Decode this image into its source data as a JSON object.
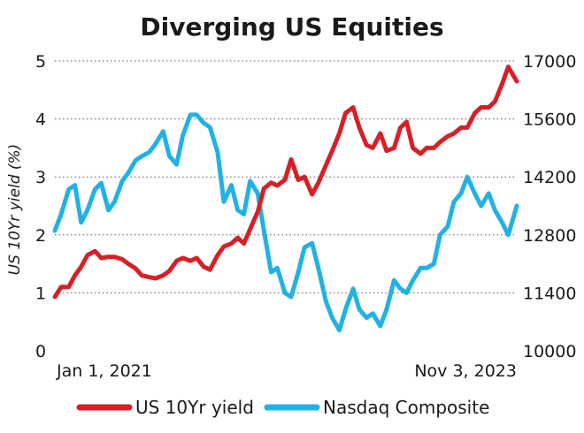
{
  "chart_data": {
    "type": "line",
    "title": "Diverging US Equities",
    "ylabel_left": "US 10Yr yield (%)",
    "ylabel_right": "",
    "x_start_label": "Jan 1, 2021",
    "x_end_label": "Nov 3, 2023",
    "y_left_ticks": [
      "0",
      "1",
      "2",
      "3",
      "4",
      "5"
    ],
    "y_right_ticks": [
      "10000",
      "11400",
      "12800",
      "14200",
      "15600",
      "17000"
    ],
    "ylim_left": [
      0,
      5
    ],
    "ylim_right": [
      10000,
      17000
    ],
    "grid": true,
    "legend_position": "bottom",
    "series": [
      {
        "name": "US 10Yr yield",
        "axis": "left",
        "color": "#d71f27",
        "x": [
          "2021-01-01",
          "2021-01-15",
          "2021-02-01",
          "2021-02-15",
          "2021-03-01",
          "2021-03-15",
          "2021-04-01",
          "2021-04-15",
          "2021-05-01",
          "2021-05-15",
          "2021-06-01",
          "2021-06-15",
          "2021-07-01",
          "2021-07-15",
          "2021-08-01",
          "2021-08-15",
          "2021-09-01",
          "2021-09-15",
          "2021-10-01",
          "2021-10-15",
          "2021-11-01",
          "2021-11-15",
          "2021-12-01",
          "2021-12-15",
          "2022-01-01",
          "2022-01-15",
          "2022-02-01",
          "2022-02-15",
          "2022-03-01",
          "2022-03-15",
          "2022-04-01",
          "2022-04-15",
          "2022-05-01",
          "2022-05-15",
          "2022-06-01",
          "2022-06-15",
          "2022-07-01",
          "2022-07-15",
          "2022-08-01",
          "2022-08-15",
          "2022-09-01",
          "2022-09-15",
          "2022-10-01",
          "2022-10-15",
          "2022-11-01",
          "2022-11-15",
          "2022-12-01",
          "2022-12-15",
          "2023-01-01",
          "2023-01-15",
          "2023-02-01",
          "2023-02-15",
          "2023-03-01",
          "2023-03-15",
          "2023-04-01",
          "2023-04-15",
          "2023-05-01",
          "2023-05-15",
          "2023-06-01",
          "2023-06-15",
          "2023-07-01",
          "2023-07-15",
          "2023-08-01",
          "2023-08-15",
          "2023-09-01",
          "2023-09-15",
          "2023-10-01",
          "2023-10-15",
          "2023-11-03"
        ],
        "values": [
          0.93,
          1.1,
          1.1,
          1.3,
          1.45,
          1.65,
          1.72,
          1.6,
          1.62,
          1.62,
          1.58,
          1.5,
          1.42,
          1.3,
          1.27,
          1.25,
          1.3,
          1.38,
          1.55,
          1.6,
          1.55,
          1.6,
          1.45,
          1.4,
          1.65,
          1.8,
          1.85,
          1.95,
          1.85,
          2.1,
          2.4,
          2.8,
          2.9,
          2.85,
          2.95,
          3.3,
          2.95,
          3.0,
          2.7,
          2.9,
          3.2,
          3.45,
          3.75,
          4.1,
          4.2,
          3.85,
          3.55,
          3.5,
          3.75,
          3.45,
          3.5,
          3.85,
          3.95,
          3.5,
          3.4,
          3.5,
          3.5,
          3.6,
          3.7,
          3.75,
          3.85,
          3.85,
          4.1,
          4.2,
          4.2,
          4.3,
          4.6,
          4.9,
          4.65
        ]
      },
      {
        "name": "Nasdaq Composite",
        "axis": "right",
        "color": "#21b2e3",
        "x": [
          "2021-01-01",
          "2021-01-15",
          "2021-02-01",
          "2021-02-15",
          "2021-03-01",
          "2021-03-15",
          "2021-04-01",
          "2021-04-15",
          "2021-05-01",
          "2021-05-15",
          "2021-06-01",
          "2021-06-15",
          "2021-07-01",
          "2021-07-15",
          "2021-08-01",
          "2021-08-15",
          "2021-09-01",
          "2021-09-15",
          "2021-10-01",
          "2021-10-15",
          "2021-11-01",
          "2021-11-15",
          "2021-12-01",
          "2021-12-15",
          "2022-01-01",
          "2022-01-15",
          "2022-02-01",
          "2022-02-15",
          "2022-03-01",
          "2022-03-15",
          "2022-04-01",
          "2022-04-15",
          "2022-05-01",
          "2022-05-15",
          "2022-06-01",
          "2022-06-15",
          "2022-07-01",
          "2022-07-15",
          "2022-08-01",
          "2022-08-15",
          "2022-09-01",
          "2022-09-15",
          "2022-10-01",
          "2022-10-15",
          "2022-11-01",
          "2022-11-15",
          "2022-12-01",
          "2022-12-15",
          "2023-01-01",
          "2023-01-15",
          "2023-02-01",
          "2023-02-15",
          "2023-03-01",
          "2023-03-15",
          "2023-04-01",
          "2023-04-15",
          "2023-05-01",
          "2023-05-15",
          "2023-06-01",
          "2023-06-15",
          "2023-07-01",
          "2023-07-15",
          "2023-08-01",
          "2023-08-15",
          "2023-09-01",
          "2023-09-15",
          "2023-10-01",
          "2023-10-15",
          "2023-11-03"
        ],
        "values": [
          12900,
          13300,
          13900,
          14000,
          13100,
          13400,
          13900,
          14050,
          13400,
          13600,
          14100,
          14300,
          14600,
          14700,
          14800,
          15000,
          15300,
          14700,
          14500,
          15200,
          15700,
          15700,
          15500,
          15400,
          14800,
          13600,
          14000,
          13400,
          13300,
          14100,
          13800,
          12900,
          11900,
          12000,
          11400,
          11300,
          11900,
          12500,
          12600,
          12000,
          11200,
          10800,
          10500,
          11000,
          11500,
          11000,
          10800,
          10900,
          10600,
          11000,
          11700,
          11500,
          11400,
          11700,
          12000,
          12000,
          12100,
          12800,
          13000,
          13600,
          13800,
          14200,
          13800,
          13500,
          13800,
          13400,
          13100,
          12800,
          13500
        ]
      }
    ]
  }
}
